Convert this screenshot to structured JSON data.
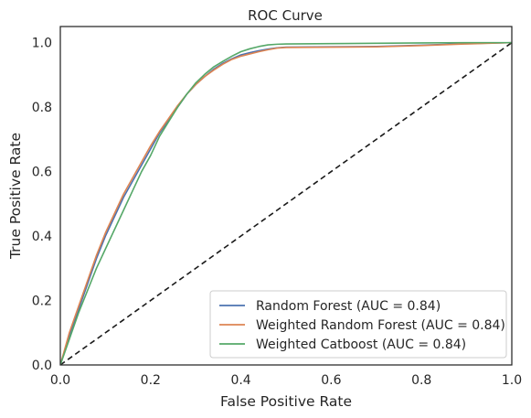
{
  "chart_data": {
    "type": "line",
    "title": "ROC Curve",
    "xlabel": "False Positive Rate",
    "ylabel": "True Positive Rate",
    "xlim": [
      0,
      1
    ],
    "ylim": [
      0,
      1.05
    ],
    "x_ticks": [
      "0.0",
      "0.2",
      "0.4",
      "0.6",
      "0.8",
      "1.0"
    ],
    "y_ticks": [
      "0.0",
      "0.2",
      "0.4",
      "0.6",
      "0.8",
      "1.0"
    ],
    "grid": false,
    "legend_position": "lower-right",
    "series": [
      {
        "name": "Random Forest (AUC = 0.84)",
        "color": "#4c72b0",
        "x": [
          0,
          0.02,
          0.04,
          0.06,
          0.08,
          0.1,
          0.12,
          0.14,
          0.16,
          0.18,
          0.2,
          0.22,
          0.24,
          0.26,
          0.28,
          0.3,
          0.32,
          0.34,
          0.36,
          0.38,
          0.4,
          0.42,
          0.44,
          0.46,
          0.48,
          0.5,
          0.6,
          0.7,
          0.8,
          0.9,
          1.0
        ],
        "y": [
          0,
          0.09,
          0.17,
          0.25,
          0.33,
          0.4,
          0.46,
          0.52,
          0.57,
          0.62,
          0.67,
          0.72,
          0.76,
          0.8,
          0.84,
          0.87,
          0.895,
          0.918,
          0.936,
          0.95,
          0.962,
          0.969,
          0.975,
          0.98,
          0.984,
          0.986,
          0.987,
          0.988,
          0.992,
          0.997,
          1.0
        ]
      },
      {
        "name": "Weighted Random Forest (AUC = 0.84)",
        "color": "#dd8452",
        "x": [
          0,
          0.02,
          0.04,
          0.06,
          0.08,
          0.1,
          0.12,
          0.14,
          0.16,
          0.18,
          0.2,
          0.22,
          0.24,
          0.26,
          0.28,
          0.3,
          0.32,
          0.34,
          0.36,
          0.38,
          0.4,
          0.42,
          0.44,
          0.46,
          0.48,
          0.5,
          0.6,
          0.7,
          0.8,
          0.9,
          1.0
        ],
        "y": [
          0,
          0.1,
          0.18,
          0.26,
          0.34,
          0.41,
          0.47,
          0.53,
          0.58,
          0.63,
          0.68,
          0.725,
          0.765,
          0.805,
          0.84,
          0.87,
          0.895,
          0.915,
          0.933,
          0.948,
          0.958,
          0.965,
          0.972,
          0.978,
          0.983,
          0.985,
          0.986,
          0.987,
          0.991,
          0.996,
          1.0
        ]
      },
      {
        "name": "Weighted Catboost (AUC = 0.84)",
        "color": "#55a868",
        "x": [
          0,
          0.02,
          0.04,
          0.06,
          0.08,
          0.1,
          0.12,
          0.14,
          0.16,
          0.18,
          0.2,
          0.22,
          0.24,
          0.26,
          0.28,
          0.3,
          0.32,
          0.34,
          0.36,
          0.38,
          0.4,
          0.42,
          0.44,
          0.46,
          0.48,
          0.5,
          0.6,
          0.7,
          0.8,
          0.9,
          1.0
        ],
        "y": [
          0,
          0.08,
          0.16,
          0.23,
          0.3,
          0.36,
          0.42,
          0.48,
          0.54,
          0.6,
          0.65,
          0.71,
          0.755,
          0.8,
          0.84,
          0.875,
          0.902,
          0.925,
          0.942,
          0.958,
          0.972,
          0.981,
          0.988,
          0.993,
          0.995,
          0.996,
          0.997,
          0.998,
          0.999,
          1.0,
          1.0
        ]
      }
    ],
    "reference_line": {
      "x": [
        0,
        1
      ],
      "y": [
        0,
        1
      ],
      "style": "dashed",
      "color": "#1a1a1a"
    }
  }
}
